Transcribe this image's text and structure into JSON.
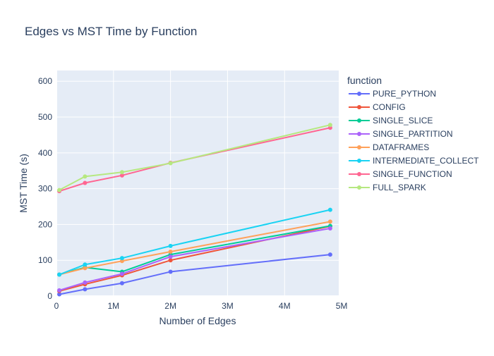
{
  "chart_data": {
    "type": "line",
    "title": "Edges vs MST Time by Function",
    "xlabel": "Number of Edges",
    "ylabel": "MST Time (s)",
    "xlim": [
      0,
      4950000
    ],
    "ylim": [
      0,
      630
    ],
    "x_ticks": [
      {
        "value": 0,
        "label": "0"
      },
      {
        "value": 1000000,
        "label": "1M"
      },
      {
        "value": 2000000,
        "label": "2M"
      },
      {
        "value": 3000000,
        "label": "3M"
      },
      {
        "value": 4000000,
        "label": "4M"
      },
      {
        "value": 5000000,
        "label": "5M"
      }
    ],
    "y_ticks": [
      {
        "value": 0,
        "label": "0"
      },
      {
        "value": 100,
        "label": "100"
      },
      {
        "value": 200,
        "label": "200"
      },
      {
        "value": 300,
        "label": "300"
      },
      {
        "value": 400,
        "label": "400"
      },
      {
        "value": 500,
        "label": "500"
      },
      {
        "value": 600,
        "label": "600"
      }
    ],
    "grid": true,
    "legend": {
      "title": "function",
      "placement": "right"
    },
    "x": [
      50000,
      500000,
      1150000,
      2000000,
      4800000
    ],
    "series": [
      {
        "name": "PURE_PYTHON",
        "color": "#636efa",
        "values": [
          5,
          19,
          36,
          68,
          116
        ]
      },
      {
        "name": "CONFIG",
        "color": "#EF553B",
        "values": [
          14,
          33,
          58,
          100,
          195
        ]
      },
      {
        "name": "SINGLE_SLICE",
        "color": "#00cc96",
        "values": [
          60,
          80,
          68,
          116,
          196
        ]
      },
      {
        "name": "SINGLE_PARTITION",
        "color": "#ab63fa",
        "values": [
          16,
          38,
          62,
          110,
          189
        ]
      },
      {
        "name": "DATAFRAMES",
        "color": "#FFA15A",
        "values": [
          60,
          78,
          98,
          124,
          208
        ]
      },
      {
        "name": "INTERMEDIATE_COLLECT",
        "color": "#19d3f3",
        "values": [
          60,
          88,
          106,
          140,
          241
        ]
      },
      {
        "name": "SINGLE_FUNCTION",
        "color": "#FF6692",
        "values": [
          293,
          316,
          337,
          372,
          470
        ]
      },
      {
        "name": "FULL_SPARK",
        "color": "#B6E880",
        "values": [
          296,
          334,
          346,
          371,
          478
        ]
      }
    ]
  }
}
